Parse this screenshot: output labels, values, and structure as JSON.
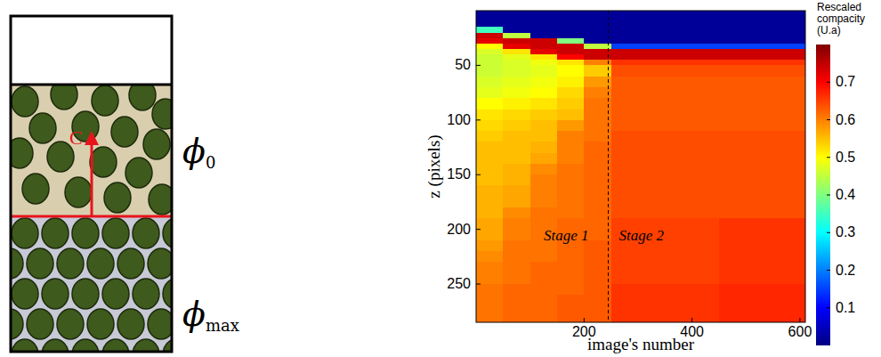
{
  "diagram": {
    "upper_phase": {
      "symbol": "ϕ",
      "subscript": "0"
    },
    "lower_phase": {
      "symbol": "ϕ",
      "subscript": "max"
    },
    "front_label": "C"
  },
  "chart_data": {
    "type": "heatmap",
    "x_label": "image's number",
    "y_label": "z (pixels)",
    "xlim": [
      0,
      610
    ],
    "ylim": [
      285,
      0
    ],
    "xticks": [
      200,
      400,
      600
    ],
    "yticks": [
      50,
      100,
      150,
      200,
      250
    ],
    "x_edges": [
      0,
      50,
      100,
      150,
      200,
      250,
      300,
      350,
      400,
      450,
      500,
      550,
      610
    ],
    "y_edges": [
      0,
      10,
      15,
      20,
      25,
      30,
      35,
      40,
      45,
      50,
      60,
      70,
      80,
      90,
      100,
      110,
      120,
      130,
      140,
      150,
      160,
      170,
      180,
      190,
      200,
      210,
      220,
      230,
      240,
      250,
      260,
      270,
      285
    ],
    "cells": [
      [
        0.02,
        0.02,
        0.02,
        0.02,
        0.02,
        0.02,
        0.02,
        0.02,
        0.02,
        0.02,
        0.02,
        0.02
      ],
      [
        0.02,
        0.02,
        0.02,
        0.02,
        0.02,
        0.02,
        0.02,
        0.02,
        0.02,
        0.02,
        0.02,
        0.02
      ],
      [
        0.35,
        0.02,
        0.02,
        0.02,
        0.02,
        0.02,
        0.02,
        0.02,
        0.02,
        0.02,
        0.02,
        0.02
      ],
      [
        0.74,
        0.45,
        0.02,
        0.02,
        0.02,
        0.02,
        0.02,
        0.02,
        0.02,
        0.02,
        0.02,
        0.02
      ],
      [
        0.72,
        0.74,
        0.74,
        0.4,
        0.02,
        0.02,
        0.02,
        0.02,
        0.02,
        0.02,
        0.02,
        0.02
      ],
      [
        0.5,
        0.72,
        0.74,
        0.74,
        0.45,
        0.15,
        0.15,
        0.15,
        0.15,
        0.15,
        0.15,
        0.15
      ],
      [
        0.47,
        0.52,
        0.72,
        0.74,
        0.74,
        0.74,
        0.74,
        0.74,
        0.74,
        0.74,
        0.74,
        0.74
      ],
      [
        0.46,
        0.48,
        0.52,
        0.7,
        0.74,
        0.74,
        0.74,
        0.74,
        0.74,
        0.74,
        0.74,
        0.74
      ],
      [
        0.46,
        0.47,
        0.49,
        0.52,
        0.6,
        0.66,
        0.66,
        0.66,
        0.66,
        0.66,
        0.66,
        0.66
      ],
      [
        0.46,
        0.47,
        0.48,
        0.5,
        0.54,
        0.64,
        0.64,
        0.64,
        0.64,
        0.64,
        0.64,
        0.64
      ],
      [
        0.47,
        0.48,
        0.49,
        0.51,
        0.58,
        0.63,
        0.63,
        0.63,
        0.63,
        0.63,
        0.63,
        0.63
      ],
      [
        0.48,
        0.49,
        0.5,
        0.53,
        0.6,
        0.63,
        0.63,
        0.63,
        0.63,
        0.63,
        0.63,
        0.63
      ],
      [
        0.5,
        0.51,
        0.52,
        0.54,
        0.61,
        0.63,
        0.63,
        0.63,
        0.63,
        0.63,
        0.63,
        0.63
      ],
      [
        0.52,
        0.53,
        0.54,
        0.55,
        0.61,
        0.63,
        0.63,
        0.63,
        0.63,
        0.63,
        0.63,
        0.63
      ],
      [
        0.53,
        0.54,
        0.55,
        0.58,
        0.61,
        0.63,
        0.63,
        0.63,
        0.63,
        0.63,
        0.63,
        0.63
      ],
      [
        0.54,
        0.55,
        0.55,
        0.6,
        0.61,
        0.64,
        0.64,
        0.64,
        0.64,
        0.64,
        0.64,
        0.64
      ],
      [
        0.55,
        0.55,
        0.56,
        0.6,
        0.62,
        0.64,
        0.64,
        0.64,
        0.64,
        0.64,
        0.64,
        0.64
      ],
      [
        0.55,
        0.55,
        0.57,
        0.6,
        0.62,
        0.64,
        0.64,
        0.64,
        0.64,
        0.64,
        0.64,
        0.64
      ],
      [
        0.55,
        0.56,
        0.59,
        0.61,
        0.62,
        0.64,
        0.64,
        0.64,
        0.64,
        0.64,
        0.64,
        0.64
      ],
      [
        0.55,
        0.56,
        0.6,
        0.61,
        0.62,
        0.64,
        0.64,
        0.64,
        0.64,
        0.64,
        0.64,
        0.64
      ],
      [
        0.56,
        0.57,
        0.6,
        0.61,
        0.62,
        0.64,
        0.64,
        0.64,
        0.64,
        0.64,
        0.64,
        0.64
      ],
      [
        0.56,
        0.57,
        0.6,
        0.61,
        0.62,
        0.64,
        0.64,
        0.64,
        0.64,
        0.64,
        0.64,
        0.64
      ],
      [
        0.56,
        0.59,
        0.61,
        0.61,
        0.62,
        0.64,
        0.64,
        0.64,
        0.64,
        0.64,
        0.64,
        0.64
      ],
      [
        0.57,
        0.6,
        0.61,
        0.62,
        0.62,
        0.65,
        0.65,
        0.65,
        0.65,
        0.66,
        0.66,
        0.66
      ],
      [
        0.57,
        0.6,
        0.61,
        0.62,
        0.62,
        0.65,
        0.65,
        0.65,
        0.65,
        0.66,
        0.66,
        0.66
      ],
      [
        0.58,
        0.61,
        0.61,
        0.62,
        0.63,
        0.65,
        0.65,
        0.65,
        0.65,
        0.66,
        0.66,
        0.66
      ],
      [
        0.59,
        0.61,
        0.61,
        0.62,
        0.63,
        0.65,
        0.65,
        0.65,
        0.65,
        0.66,
        0.66,
        0.66
      ],
      [
        0.6,
        0.61,
        0.62,
        0.62,
        0.63,
        0.65,
        0.65,
        0.65,
        0.65,
        0.66,
        0.66,
        0.66
      ],
      [
        0.6,
        0.61,
        0.62,
        0.62,
        0.63,
        0.65,
        0.65,
        0.65,
        0.65,
        0.66,
        0.66,
        0.66
      ],
      [
        0.61,
        0.62,
        0.62,
        0.62,
        0.63,
        0.66,
        0.66,
        0.66,
        0.66,
        0.67,
        0.67,
        0.67
      ],
      [
        0.61,
        0.62,
        0.62,
        0.63,
        0.63,
        0.66,
        0.66,
        0.66,
        0.66,
        0.67,
        0.67,
        0.67
      ],
      [
        0.61,
        0.62,
        0.62,
        0.63,
        0.63,
        0.66,
        0.66,
        0.66,
        0.66,
        0.67,
        0.67,
        0.67
      ]
    ],
    "colorbar": {
      "title": "Rescaled compacity (U.a)",
      "range": [
        0,
        0.8
      ],
      "ticks": [
        0.1,
        0.2,
        0.3,
        0.4,
        0.5,
        0.6,
        0.7
      ]
    },
    "stage_boundary": 245,
    "annotations": [
      {
        "text": "Stage 1"
      },
      {
        "text": "Stage 2"
      }
    ]
  }
}
